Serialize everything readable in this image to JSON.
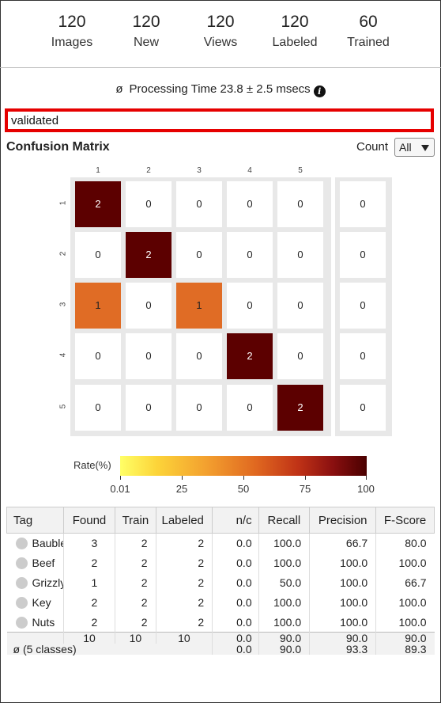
{
  "stats": [
    {
      "value": "120",
      "label": "Images"
    },
    {
      "value": "120",
      "label": "New"
    },
    {
      "value": "120",
      "label": "Views"
    },
    {
      "value": "120",
      "label": "Labeled"
    },
    {
      "value": "60",
      "label": "Trained"
    }
  ],
  "processing": {
    "symbol": "ø",
    "text": "Processing Time 23.8 ± 2.5 msecs",
    "info_icon": "info-icon"
  },
  "search": {
    "value": "validated"
  },
  "confusion": {
    "title": "Confusion Matrix",
    "count_label": "Count",
    "select_value": "All",
    "col_headers": [
      "1",
      "2",
      "3",
      "4",
      "5"
    ],
    "row_headers": [
      "1",
      "2",
      "3",
      "4",
      "5"
    ],
    "matrix": [
      [
        "2",
        "0",
        "0",
        "0",
        "0"
      ],
      [
        "0",
        "2",
        "0",
        "0",
        "0"
      ],
      [
        "1",
        "0",
        "1",
        "0",
        "0"
      ],
      [
        "0",
        "0",
        "0",
        "2",
        "0"
      ],
      [
        "0",
        "0",
        "0",
        "0",
        "2"
      ]
    ],
    "rates": [
      [
        100,
        0,
        0,
        0,
        0
      ],
      [
        0,
        100,
        0,
        0,
        0
      ],
      [
        50,
        0,
        50,
        0,
        0
      ],
      [
        0,
        0,
        0,
        100,
        0
      ],
      [
        0,
        0,
        0,
        0,
        100
      ]
    ],
    "unassigned": [
      "0",
      "0",
      "0",
      "0",
      "0"
    ],
    "colorbar": {
      "label": "Rate(%)",
      "ticks": [
        "0.01",
        "25",
        "50",
        "75",
        "100"
      ]
    },
    "colors": {
      "high": "#5c0000",
      "mid": "#e06c25",
      "low": "#ffffff"
    }
  },
  "table": {
    "headers": [
      "Tag",
      "Found",
      "Train",
      "Labeled",
      "n/c",
      "Recall",
      "Precision",
      "F-Score"
    ],
    "rows": [
      {
        "tag": "Bauble",
        "found": "3",
        "train": "2",
        "labeled": "2",
        "nc": "0.0",
        "recall": "100.0",
        "precision": "66.7",
        "fscore": "80.0"
      },
      {
        "tag": "Beef",
        "found": "2",
        "train": "2",
        "labeled": "2",
        "nc": "0.0",
        "recall": "100.0",
        "precision": "100.0",
        "fscore": "100.0"
      },
      {
        "tag": "Grizzly",
        "found": "1",
        "train": "2",
        "labeled": "2",
        "nc": "0.0",
        "recall": "50.0",
        "precision": "100.0",
        "fscore": "66.7"
      },
      {
        "tag": "Key",
        "found": "2",
        "train": "2",
        "labeled": "2",
        "nc": "0.0",
        "recall": "100.0",
        "precision": "100.0",
        "fscore": "100.0"
      },
      {
        "tag": "Nuts",
        "found": "2",
        "train": "2",
        "labeled": "2",
        "nc": "0.0",
        "recall": "100.0",
        "precision": "100.0",
        "fscore": "100.0"
      }
    ],
    "totals": {
      "found": "10",
      "train": "10",
      "labeled": "10",
      "nc": "0.0",
      "recall": "90.0",
      "precision": "90.0",
      "fscore": "90.0"
    },
    "average": {
      "label": "ø (5 classes)",
      "nc": "0.0",
      "recall": "90.0",
      "precision": "93.3",
      "fscore": "89.3"
    }
  }
}
